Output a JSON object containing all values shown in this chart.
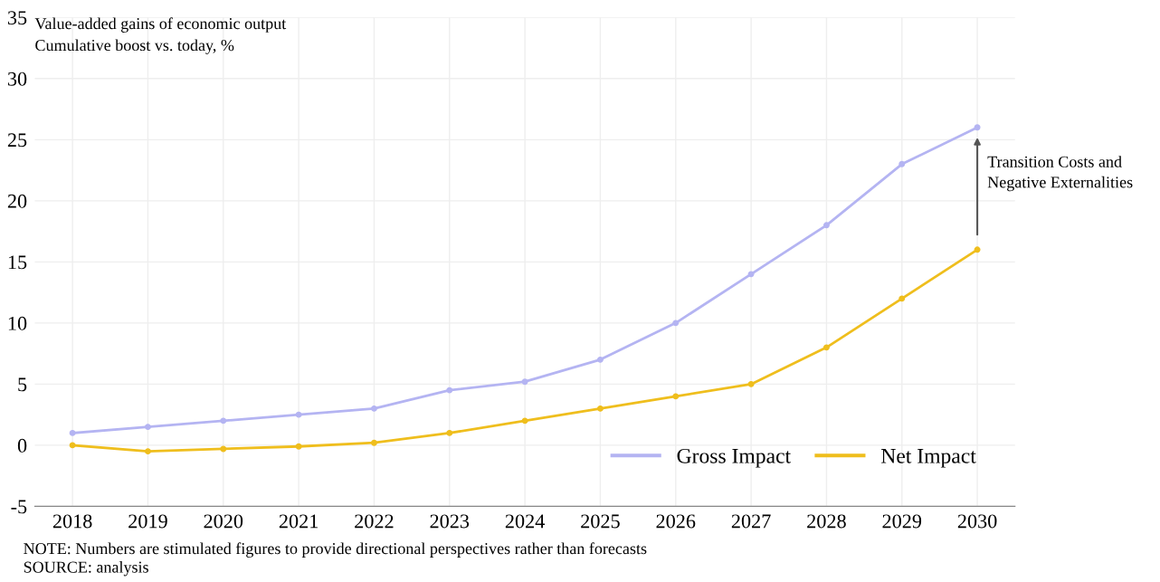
{
  "chart_data": {
    "type": "line",
    "title": "Value-added gains of economic output",
    "subtitle": "Cumulative boost vs. today, %",
    "x": [
      2018,
      2019,
      2020,
      2021,
      2022,
      2023,
      2024,
      2025,
      2026,
      2027,
      2028,
      2029,
      2030
    ],
    "series": [
      {
        "name": "Gross Impact",
        "color": "#b4b4f2",
        "values": [
          1,
          1.5,
          2,
          2.5,
          3,
          4.5,
          5.2,
          7,
          10,
          14,
          18,
          23,
          26
        ]
      },
      {
        "name": "Net Impact",
        "color": "#efbe1d",
        "values": [
          0,
          -0.5,
          -0.3,
          -0.1,
          0.2,
          1,
          2,
          3,
          4,
          5,
          8,
          12,
          16
        ]
      }
    ],
    "xlim": [
      2017.5,
      2030.5
    ],
    "xticks": [
      2018,
      2019,
      2020,
      2021,
      2022,
      2023,
      2024,
      2025,
      2026,
      2027,
      2028,
      2029,
      2030
    ],
    "ylim": [
      -5,
      35
    ],
    "yticks": [
      -5,
      0,
      5,
      10,
      15,
      20,
      25,
      30,
      35
    ],
    "grid": true,
    "legend": "bottom right",
    "marker": "circle",
    "line_style": "solid",
    "annotations": [
      "Transition Costs and\nNegative Externalities",
      "NOTE: Numbers are stimulated figures to provide directional perspectives rather than forecasts",
      "SOURCE: analysis"
    ]
  }
}
